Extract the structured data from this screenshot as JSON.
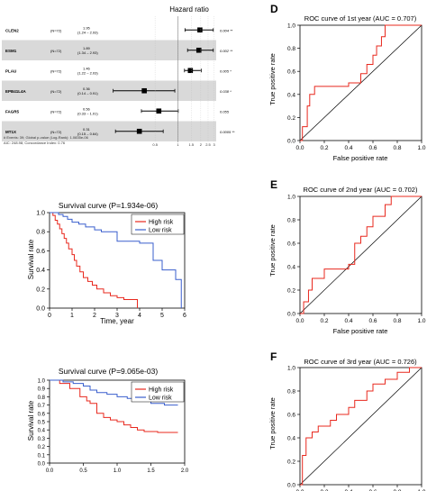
{
  "forest": {
    "title": "Hazard ratio",
    "rows": [
      {
        "gene": "CLEN2",
        "n": "(N=72)",
        "hr_text": "1.95",
        "ci_text": "(1.24 – 2.93)",
        "p_text": "0.004 **",
        "hr": 1.95,
        "lo": 1.24,
        "hi": 2.93,
        "shaded": false
      },
      {
        "gene": "ESM1",
        "n": "(N=72)",
        "hr_text": "1.89",
        "ci_text": "(1.34 – 2.93)",
        "p_text": "0.002 **",
        "hr": 1.89,
        "lo": 1.34,
        "hi": 2.93,
        "shaded": true
      },
      {
        "gene": "PLAU",
        "n": "(N=72)",
        "hr_text": "1.46",
        "ci_text": "(1.22 – 2.03)",
        "p_text": "0.005 *",
        "hr": 1.46,
        "lo": 1.22,
        "hi": 2.03,
        "shaded": false
      },
      {
        "gene": "EPB41L4A",
        "n": "(N=72)",
        "hr_text": "0.36",
        "ci_text": "(0.14 – 0.91)",
        "p_text": "0.038 *",
        "hr": 0.36,
        "lo": 0.14,
        "hi": 0.91,
        "shaded": true
      },
      {
        "gene": "FAGR5",
        "n": "(N=72)",
        "hr_text": "0.56",
        "ci_text": "(0.33 – 1.01)",
        "p_text": "0.055",
        "hr": 0.56,
        "lo": 0.33,
        "hi": 1.01,
        "shaded": false
      },
      {
        "gene": "MT1X",
        "n": "(N=72)",
        "hr_text": "0.31",
        "ci_text": "(0.15 – 0.64)",
        "p_text": "0.0005 **",
        "hr": 0.31,
        "lo": 0.15,
        "hi": 0.64,
        "shaded": true
      }
    ],
    "footnote1": "# Events: 39; Global p-value (Log-Rank): 1.0835e-06",
    "footnote2": "AIC: 248.98; Concordance Index: 0.76",
    "ticks": [
      "0.5",
      "1",
      "1.5",
      "2",
      "2.5",
      "3"
    ]
  },
  "survival1": {
    "title": "Survival curve (P=1.934e-06)",
    "ylabel": "Survival rate",
    "xlabel": "Time, year",
    "xticks": [
      "0",
      "1",
      "2",
      "3",
      "4",
      "5",
      "6"
    ],
    "yticks": [
      "0.0",
      "0.2",
      "0.4",
      "0.6",
      "0.8",
      "1.0"
    ],
    "legend": [
      "High risk",
      "Low risk"
    ],
    "colors": {
      "high": "#e8281e",
      "low": "#3a5fcd"
    }
  },
  "survival2": {
    "title": "Survival curve (P=9.065e-03)",
    "ylabel": "Survival rate",
    "xticks": [
      "0.0",
      "0.5",
      "1.0",
      "1.5",
      "2.0"
    ],
    "yticks": [
      "0.0",
      "0.1",
      "0.2",
      "0.3",
      "0.4",
      "0.5",
      "0.6",
      "0.7",
      "0.8",
      "0.9",
      "1.0"
    ],
    "legend": [
      "High risk",
      "Low risk"
    ]
  },
  "roc": {
    "D": {
      "letter": "D",
      "title": "ROC curve of 1st year (AUC = 0.707)",
      "xlabel": "False positive rate",
      "ylabel": "True positive rate"
    },
    "E": {
      "letter": "E",
      "title": "ROC curve of 2nd year (AUC = 0.702)",
      "xlabel": "False positive rate",
      "ylabel": "True positive rate"
    },
    "F": {
      "letter": "F",
      "title": "ROC curve of 3rd year (AUC = 0.726)",
      "ylabel": "True positive rate"
    },
    "ticks": [
      "0.0",
      "0.2",
      "0.4",
      "0.6",
      "0.8",
      "1.0"
    ]
  },
  "chart_data": [
    {
      "type": "scatter",
      "title": "Hazard ratio",
      "categories": [
        "CLEN2",
        "ESM1",
        "PLAU",
        "EPB41L4A",
        "FAGR5",
        "MT1X"
      ],
      "hr": [
        1.95,
        1.89,
        1.46,
        0.36,
        0.56,
        0.31
      ],
      "ci_low": [
        1.24,
        1.34,
        1.22,
        0.14,
        0.33,
        0.15
      ],
      "ci_high": [
        2.93,
        2.93,
        2.03,
        0.91,
        1.01,
        0.64
      ]
    },
    {
      "type": "line",
      "title": "Survival curve (P=1.934e-06)",
      "xlabel": "Time, year",
      "ylabel": "Survival rate",
      "xlim": [
        0,
        6
      ],
      "ylim": [
        0,
        1
      ],
      "series": [
        {
          "name": "High risk",
          "x": [
            0,
            0.15,
            0.25,
            0.35,
            0.45,
            0.55,
            0.65,
            0.75,
            0.85,
            1.0,
            1.1,
            1.2,
            1.35,
            1.5,
            1.7,
            1.9,
            2.1,
            2.4,
            2.7,
            3.0,
            3.3,
            3.6,
            3.9
          ],
          "y": [
            1.0,
            0.97,
            0.92,
            0.88,
            0.83,
            0.78,
            0.73,
            0.68,
            0.62,
            0.56,
            0.5,
            0.44,
            0.38,
            0.32,
            0.28,
            0.24,
            0.2,
            0.16,
            0.13,
            0.11,
            0.09,
            0.09,
            0.0
          ]
        },
        {
          "name": "Low risk",
          "x": [
            0,
            0.4,
            0.6,
            0.8,
            1.0,
            1.3,
            1.6,
            2.0,
            2.3,
            2.6,
            3.0,
            3.5,
            4.0,
            4.6,
            5.0,
            5.6,
            5.85
          ],
          "y": [
            1.0,
            0.98,
            0.96,
            0.93,
            0.9,
            0.88,
            0.85,
            0.82,
            0.8,
            0.8,
            0.7,
            0.7,
            0.68,
            0.5,
            0.4,
            0.3,
            0.0
          ]
        }
      ]
    },
    {
      "type": "line",
      "title": "Survival curve (P=9.065e-03)",
      "ylabel": "Survival rate",
      "xlim": [
        0,
        2
      ],
      "ylim": [
        0,
        1
      ],
      "series": [
        {
          "name": "High risk",
          "x": [
            0,
            0.15,
            0.3,
            0.45,
            0.55,
            0.6,
            0.7,
            0.8,
            0.9,
            1.0,
            1.1,
            1.2,
            1.3,
            1.4,
            1.6,
            1.9
          ],
          "y": [
            1.0,
            0.96,
            0.9,
            0.8,
            0.75,
            0.72,
            0.6,
            0.55,
            0.52,
            0.5,
            0.46,
            0.43,
            0.4,
            0.38,
            0.37,
            0.37
          ]
        },
        {
          "name": "Low risk",
          "x": [
            0,
            0.2,
            0.35,
            0.5,
            0.6,
            0.7,
            0.85,
            1.0,
            1.15,
            1.3,
            1.5,
            1.7,
            1.9
          ],
          "y": [
            1.0,
            0.98,
            0.96,
            0.93,
            0.88,
            0.85,
            0.83,
            0.8,
            0.78,
            0.76,
            0.72,
            0.7,
            0.7
          ]
        }
      ]
    },
    {
      "type": "line",
      "title": "ROC curve of 1st year (AUC = 0.707)",
      "xlabel": "False positive rate",
      "ylabel": "True positive rate",
      "xlim": [
        0,
        1
      ],
      "ylim": [
        0,
        1
      ],
      "x": [
        0,
        0.02,
        0.02,
        0.06,
        0.06,
        0.08,
        0.08,
        0.12,
        0.12,
        0.4,
        0.4,
        0.5,
        0.5,
        0.55,
        0.55,
        0.6,
        0.6,
        0.63,
        0.63,
        0.67,
        0.67,
        0.7,
        0.7,
        0.95,
        1.0
      ],
      "y": [
        0,
        0,
        0.12,
        0.12,
        0.3,
        0.3,
        0.4,
        0.4,
        0.47,
        0.47,
        0.5,
        0.5,
        0.58,
        0.58,
        0.66,
        0.66,
        0.74,
        0.74,
        0.82,
        0.82,
        0.9,
        0.9,
        1.0,
        1.0,
        1.0
      ]
    },
    {
      "type": "line",
      "title": "ROC curve of 2nd year (AUC = 0.702)",
      "xlabel": "False positive rate",
      "ylabel": "True positive rate",
      "xlim": [
        0,
        1
      ],
      "ylim": [
        0,
        1
      ],
      "x": [
        0,
        0.03,
        0.03,
        0.07,
        0.07,
        0.1,
        0.1,
        0.2,
        0.2,
        0.4,
        0.4,
        0.45,
        0.45,
        0.5,
        0.5,
        0.55,
        0.55,
        0.6,
        0.6,
        0.7,
        0.7,
        0.75,
        0.75,
        0.95,
        1.0
      ],
      "y": [
        0,
        0,
        0.1,
        0.1,
        0.2,
        0.2,
        0.3,
        0.3,
        0.38,
        0.38,
        0.42,
        0.42,
        0.6,
        0.6,
        0.66,
        0.66,
        0.74,
        0.74,
        0.83,
        0.83,
        0.93,
        0.93,
        1.0,
        1.0,
        1.0
      ]
    },
    {
      "type": "line",
      "title": "ROC curve of 3rd year (AUC = 0.726)",
      "ylabel": "True positive rate",
      "xlim": [
        0,
        1
      ],
      "ylim": [
        0,
        1
      ],
      "x": [
        0,
        0.02,
        0.02,
        0.05,
        0.05,
        0.1,
        0.1,
        0.15,
        0.15,
        0.25,
        0.25,
        0.3,
        0.3,
        0.4,
        0.4,
        0.45,
        0.45,
        0.55,
        0.55,
        0.6,
        0.6,
        0.7,
        0.7,
        0.8,
        0.8,
        0.9,
        0.9,
        1.0
      ],
      "y": [
        0,
        0,
        0.25,
        0.25,
        0.4,
        0.4,
        0.45,
        0.45,
        0.5,
        0.5,
        0.55,
        0.55,
        0.6,
        0.6,
        0.66,
        0.66,
        0.72,
        0.72,
        0.8,
        0.8,
        0.86,
        0.86,
        0.9,
        0.9,
        0.96,
        0.96,
        1.0,
        1.0
      ]
    }
  ]
}
